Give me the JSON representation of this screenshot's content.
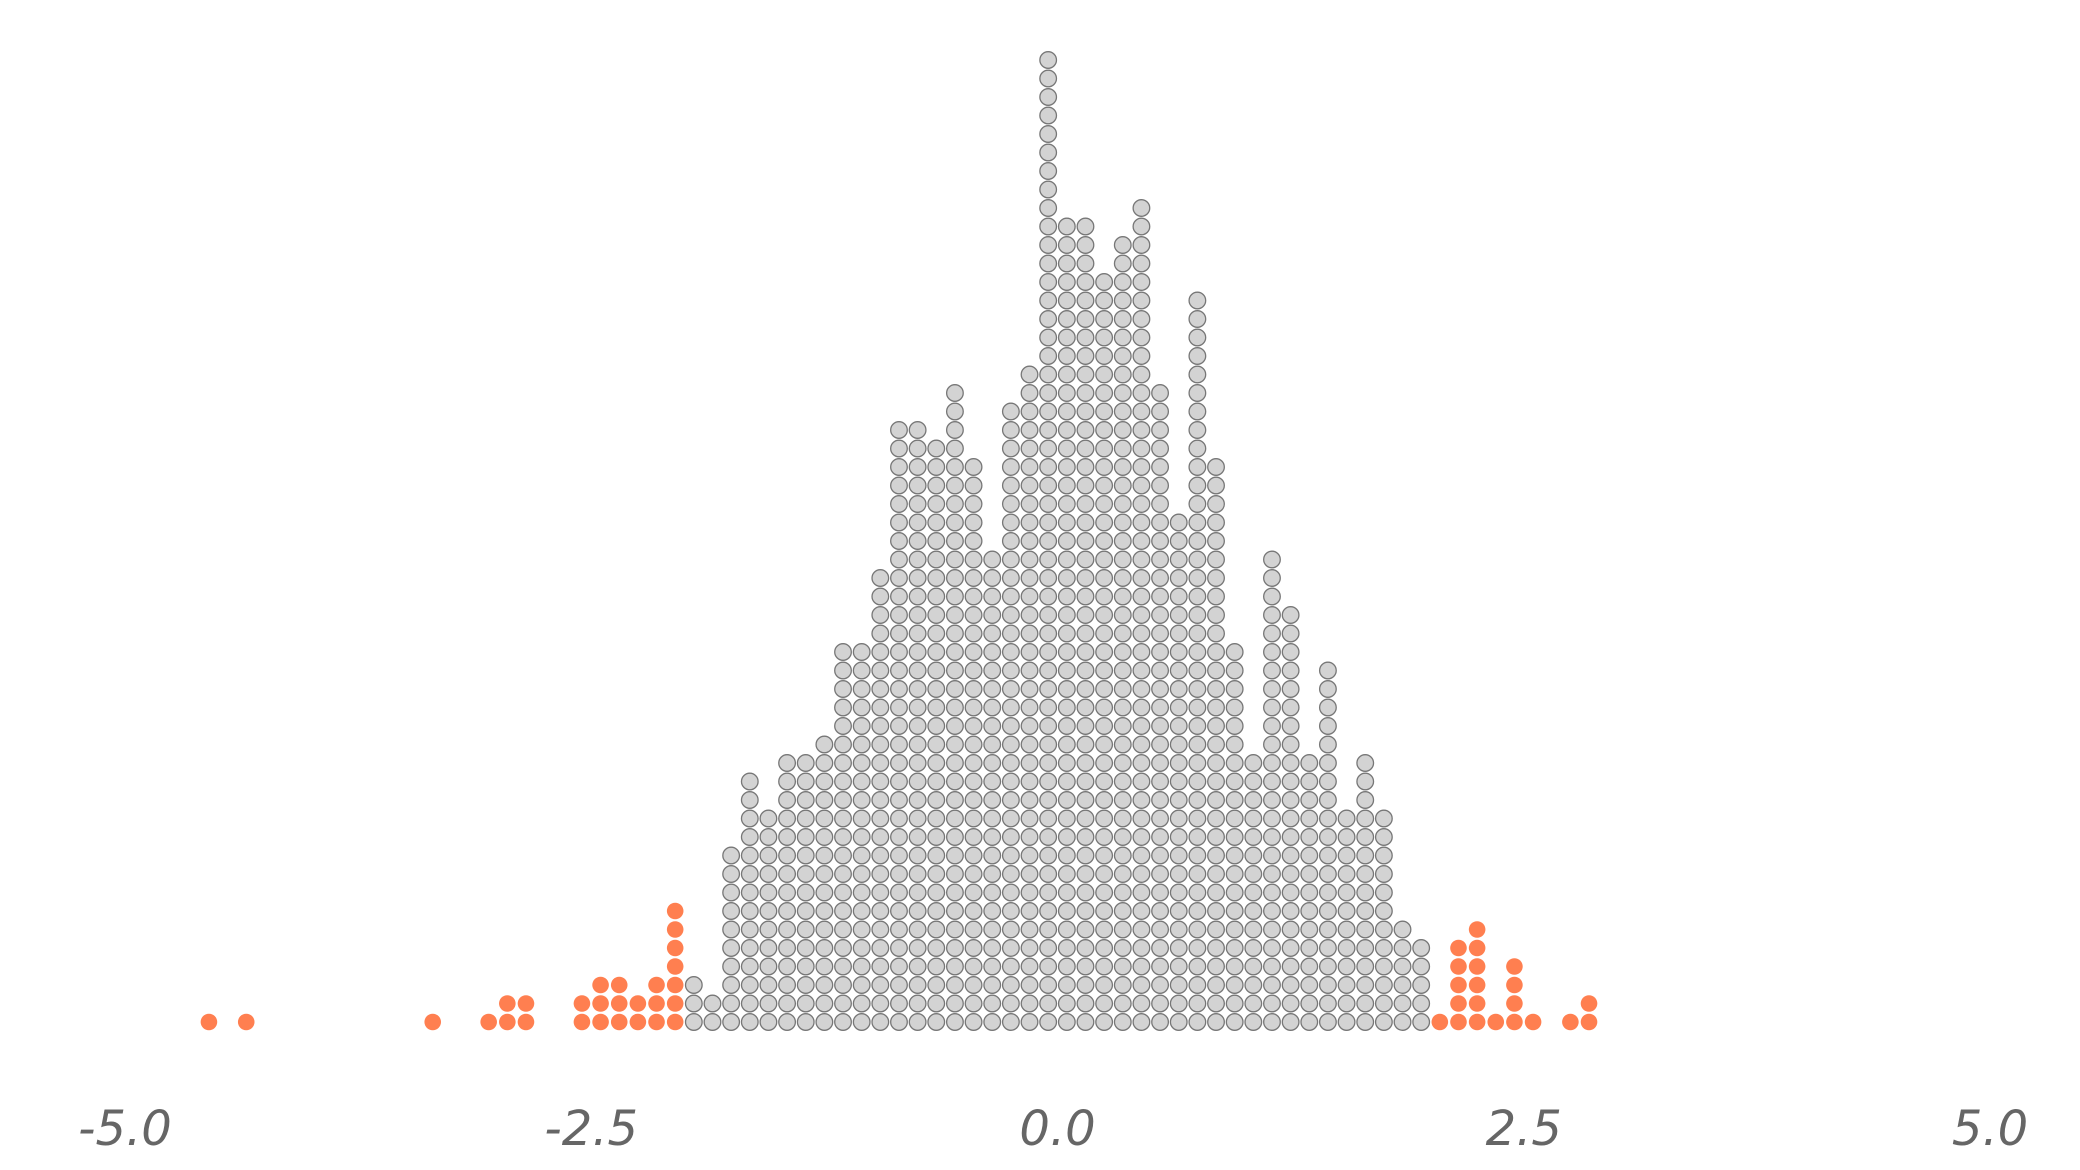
{
  "chart_data": {
    "type": "scatter",
    "subtype": "dot-plot",
    "title": "",
    "xlabel": "",
    "ylabel": "",
    "xlim": [
      -5.0,
      5.0
    ],
    "x_ticks": [
      "-5.0",
      "-2.5",
      "0.0",
      "2.5",
      "5.0"
    ],
    "grid": false,
    "legend": "none",
    "colors": {
      "inner": "#d3d3d3",
      "inner_edge": "#777777",
      "tail": "#ff7f50"
    },
    "tail_threshold": 1.96,
    "bins": [
      {
        "x": -4.55,
        "count": 1
      },
      {
        "x": -4.35,
        "count": 1
      },
      {
        "x": -3.35,
        "count": 1
      },
      {
        "x": -3.05,
        "count": 1
      },
      {
        "x": -2.95,
        "count": 2
      },
      {
        "x": -2.85,
        "count": 2
      },
      {
        "x": -2.55,
        "count": 2
      },
      {
        "x": -2.45,
        "count": 3
      },
      {
        "x": -2.35,
        "count": 3
      },
      {
        "x": -2.25,
        "count": 2
      },
      {
        "x": -2.15,
        "count": 3
      },
      {
        "x": -2.05,
        "count": 7
      },
      {
        "x": -1.95,
        "count": 3
      },
      {
        "x": -1.85,
        "count": 2
      },
      {
        "x": -1.75,
        "count": 10
      },
      {
        "x": -1.65,
        "count": 14
      },
      {
        "x": -1.55,
        "count": 12
      },
      {
        "x": -1.45,
        "count": 15
      },
      {
        "x": -1.35,
        "count": 15
      },
      {
        "x": -1.25,
        "count": 16
      },
      {
        "x": -1.15,
        "count": 21
      },
      {
        "x": -1.05,
        "count": 21
      },
      {
        "x": -0.95,
        "count": 25
      },
      {
        "x": -0.85,
        "count": 33
      },
      {
        "x": -0.75,
        "count": 33
      },
      {
        "x": -0.65,
        "count": 32
      },
      {
        "x": -0.55,
        "count": 35
      },
      {
        "x": -0.45,
        "count": 31
      },
      {
        "x": -0.35,
        "count": 26
      },
      {
        "x": -0.25,
        "count": 34
      },
      {
        "x": -0.15,
        "count": 36
      },
      {
        "x": -0.05,
        "count": 53
      },
      {
        "x": 0.05,
        "count": 44
      },
      {
        "x": 0.15,
        "count": 44
      },
      {
        "x": 0.25,
        "count": 41
      },
      {
        "x": 0.35,
        "count": 43
      },
      {
        "x": 0.45,
        "count": 45
      },
      {
        "x": 0.55,
        "count": 35
      },
      {
        "x": 0.65,
        "count": 28
      },
      {
        "x": 0.75,
        "count": 40
      },
      {
        "x": 0.85,
        "count": 31
      },
      {
        "x": 0.95,
        "count": 21
      },
      {
        "x": 1.05,
        "count": 15
      },
      {
        "x": 1.15,
        "count": 26
      },
      {
        "x": 1.25,
        "count": 23
      },
      {
        "x": 1.35,
        "count": 15
      },
      {
        "x": 1.45,
        "count": 20
      },
      {
        "x": 1.55,
        "count": 12
      },
      {
        "x": 1.65,
        "count": 15
      },
      {
        "x": 1.75,
        "count": 12
      },
      {
        "x": 1.85,
        "count": 6
      },
      {
        "x": 1.95,
        "count": 5
      },
      {
        "x": 2.05,
        "count": 1
      },
      {
        "x": 2.15,
        "count": 5
      },
      {
        "x": 2.25,
        "count": 6
      },
      {
        "x": 2.35,
        "count": 1
      },
      {
        "x": 2.45,
        "count": 4
      },
      {
        "x": 2.55,
        "count": 1
      },
      {
        "x": 2.75,
        "count": 1
      },
      {
        "x": 2.85,
        "count": 2
      }
    ]
  }
}
